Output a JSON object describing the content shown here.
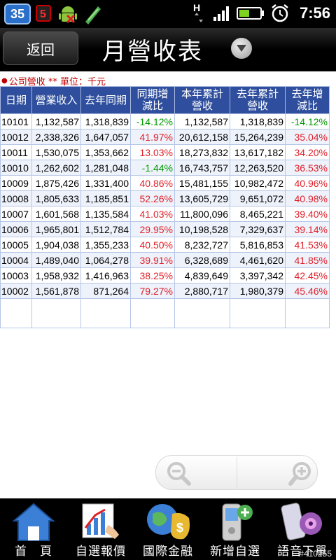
{
  "status": {
    "notification_count": "35",
    "network_letter": "H",
    "time": "7:56"
  },
  "header": {
    "back_label": "返回",
    "title": "月營收表"
  },
  "unit_line": "公司營收 ** 單位：千元",
  "table": {
    "headers": [
      [
        "日期"
      ],
      [
        "營業收入"
      ],
      [
        "去年同期"
      ],
      [
        "同期增",
        "減比"
      ],
      [
        "本年累計",
        "營收"
      ],
      [
        "去年累計",
        "營收"
      ],
      [
        "去年增",
        "減比"
      ]
    ],
    "rows": [
      [
        "10101",
        "1,132,587",
        "1,318,839",
        "-14.12%",
        "1,132,587",
        "1,318,839",
        "-14.12%"
      ],
      [
        "10012",
        "2,338,326",
        "1,647,057",
        "41.97%",
        "20,612,158",
        "15,264,239",
        "35.04%"
      ],
      [
        "10011",
        "1,530,075",
        "1,353,662",
        "13.03%",
        "18,273,832",
        "13,617,182",
        "34.20%"
      ],
      [
        "10010",
        "1,262,602",
        "1,281,048",
        "-1.44%",
        "16,743,757",
        "12,263,520",
        "36.53%"
      ],
      [
        "10009",
        "1,875,426",
        "1,331,400",
        "40.86%",
        "15,481,155",
        "10,982,472",
        "40.96%"
      ],
      [
        "10008",
        "1,805,633",
        "1,185,851",
        "52.26%",
        "13,605,729",
        "9,651,072",
        "40.98%"
      ],
      [
        "10007",
        "1,601,568",
        "1,135,584",
        "41.03%",
        "11,800,096",
        "8,465,221",
        "39.40%"
      ],
      [
        "10006",
        "1,965,801",
        "1,512,784",
        "29.95%",
        "10,198,528",
        "7,329,637",
        "39.14%"
      ],
      [
        "10005",
        "1,904,038",
        "1,355,233",
        "40.50%",
        "8,232,727",
        "5,816,853",
        "41.53%"
      ],
      [
        "10004",
        "1,489,040",
        "1,064,278",
        "39.91%",
        "6,328,689",
        "4,461,620",
        "41.85%"
      ],
      [
        "10003",
        "1,958,932",
        "1,416,963",
        "38.25%",
        "4,839,649",
        "3,397,342",
        "42.45%"
      ],
      [
        "10002",
        "1,561,878",
        "871,264",
        "79.27%",
        "2,880,717",
        "1,980,379",
        "45.46%"
      ]
    ]
  },
  "colors": {
    "header_bg": "#2f4f9e",
    "negative": "#009900",
    "positive": "#e0202a",
    "unit_text": "#c00000"
  },
  "bottom_nav": [
    {
      "label": "首　頁",
      "icon": "home-icon"
    },
    {
      "label": "自選報價",
      "icon": "chart-hand-icon"
    },
    {
      "label": "國際金融",
      "icon": "globe-money-icon"
    },
    {
      "label": "新增自選",
      "icon": "phone-add-icon"
    },
    {
      "label": "語音下單",
      "icon": "phone-speaker-icon"
    }
  ],
  "watermark": "#410255"
}
